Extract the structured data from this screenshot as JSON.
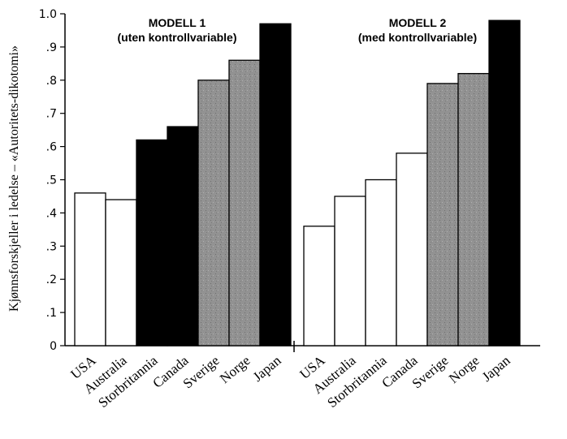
{
  "chart_data": {
    "type": "bar",
    "ylabel": "Kjønnsforskjeller i ledelse – «Autoritets-dikotomi»",
    "ylim": [
      0,
      1.0
    ],
    "yticks": [
      {
        "value": 0,
        "label": "0"
      },
      {
        "value": 0.1,
        "label": ".1"
      },
      {
        "value": 0.2,
        "label": ".2"
      },
      {
        "value": 0.3,
        "label": ".3"
      },
      {
        "value": 0.4,
        "label": ".4"
      },
      {
        "value": 0.5,
        "label": ".5"
      },
      {
        "value": 0.6,
        "label": ".6"
      },
      {
        "value": 0.7,
        "label": ".7"
      },
      {
        "value": 0.8,
        "label": ".8"
      },
      {
        "value": 0.9,
        "label": ".9"
      },
      {
        "value": 1.0,
        "label": "1.0"
      }
    ],
    "grid": false,
    "fill_colors": {
      "white": "#ffffff",
      "gray": "#8e8e8e",
      "black": "#000000"
    },
    "panels": [
      {
        "title_line1": "MODELL 1",
        "title_line2": "(uten   kontrollvariable)",
        "categories": [
          "USA",
          "Australia",
          "Storbritannia",
          "Canada",
          "Sverige",
          "Norge",
          "Japan"
        ],
        "values": [
          0.46,
          0.44,
          0.62,
          0.66,
          0.8,
          0.86,
          0.97
        ],
        "fills": [
          "white",
          "white",
          "black",
          "black",
          "gray",
          "gray",
          "black"
        ]
      },
      {
        "title_line1": "MODELL 2",
        "title_line2": "(med   kontrollvariable)",
        "categories": [
          "USA",
          "Australia",
          "Storbritannia",
          "Canada",
          "Sverige",
          "Norge",
          "Japan"
        ],
        "values": [
          0.36,
          0.45,
          0.5,
          0.58,
          0.79,
          0.82,
          0.98
        ],
        "fills": [
          "white",
          "white",
          "white",
          "white",
          "gray",
          "gray",
          "black"
        ]
      }
    ]
  }
}
